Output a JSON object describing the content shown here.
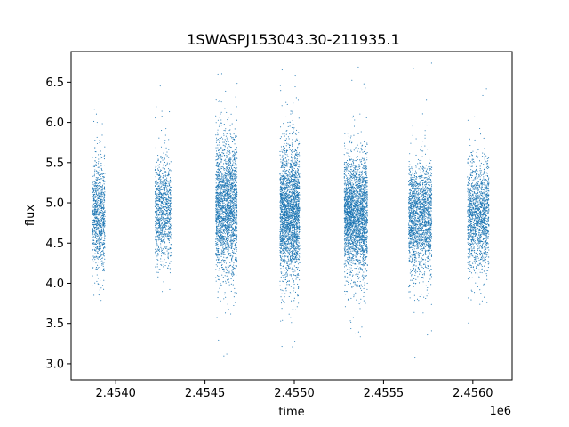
{
  "chart_data": {
    "type": "scatter",
    "title": "1SWASPJ153043.30-211935.1",
    "xlabel": "time",
    "ylabel": "flux",
    "x_offset_label": "1e6",
    "xlim": [
      2.45375,
      2.45622
    ],
    "ylim": [
      2.8,
      6.88
    ],
    "x_ticks": [
      2.454,
      2.4545,
      2.455,
      2.4555,
      2.456
    ],
    "x_tick_labels": [
      "2.4540",
      "2.4545",
      "2.4550",
      "2.4555",
      "2.4560"
    ],
    "y_ticks": [
      3.0,
      3.5,
      4.0,
      4.5,
      5.0,
      5.5,
      6.0,
      6.5
    ],
    "y_tick_labels": [
      "3.0",
      "3.5",
      "4.0",
      "4.5",
      "5.0",
      "5.5",
      "6.0",
      "6.5"
    ],
    "grid": false,
    "point_color": "#1f77b4",
    "observing_seasons": [
      {
        "x_start": 2.45387,
        "x_end": 2.45394,
        "flux_center": 4.85,
        "flux_spread": 0.32,
        "n_points": 900
      },
      {
        "x_start": 2.45422,
        "x_end": 2.45431,
        "flux_center": 4.9,
        "flux_spread": 0.33,
        "n_points": 1000
      },
      {
        "x_start": 2.45456,
        "x_end": 2.45468,
        "flux_center": 4.95,
        "flux_spread": 0.42,
        "n_points": 2200
      },
      {
        "x_start": 2.45492,
        "x_end": 2.45503,
        "flux_center": 4.9,
        "flux_spread": 0.4,
        "n_points": 2400
      },
      {
        "x_start": 2.45528,
        "x_end": 2.45541,
        "flux_center": 4.85,
        "flux_spread": 0.36,
        "n_points": 2600
      },
      {
        "x_start": 2.45564,
        "x_end": 2.45577,
        "flux_center": 4.8,
        "flux_spread": 0.34,
        "n_points": 1800
      },
      {
        "x_start": 2.45597,
        "x_end": 2.45609,
        "flux_center": 4.85,
        "flux_spread": 0.34,
        "n_points": 1500
      }
    ]
  }
}
